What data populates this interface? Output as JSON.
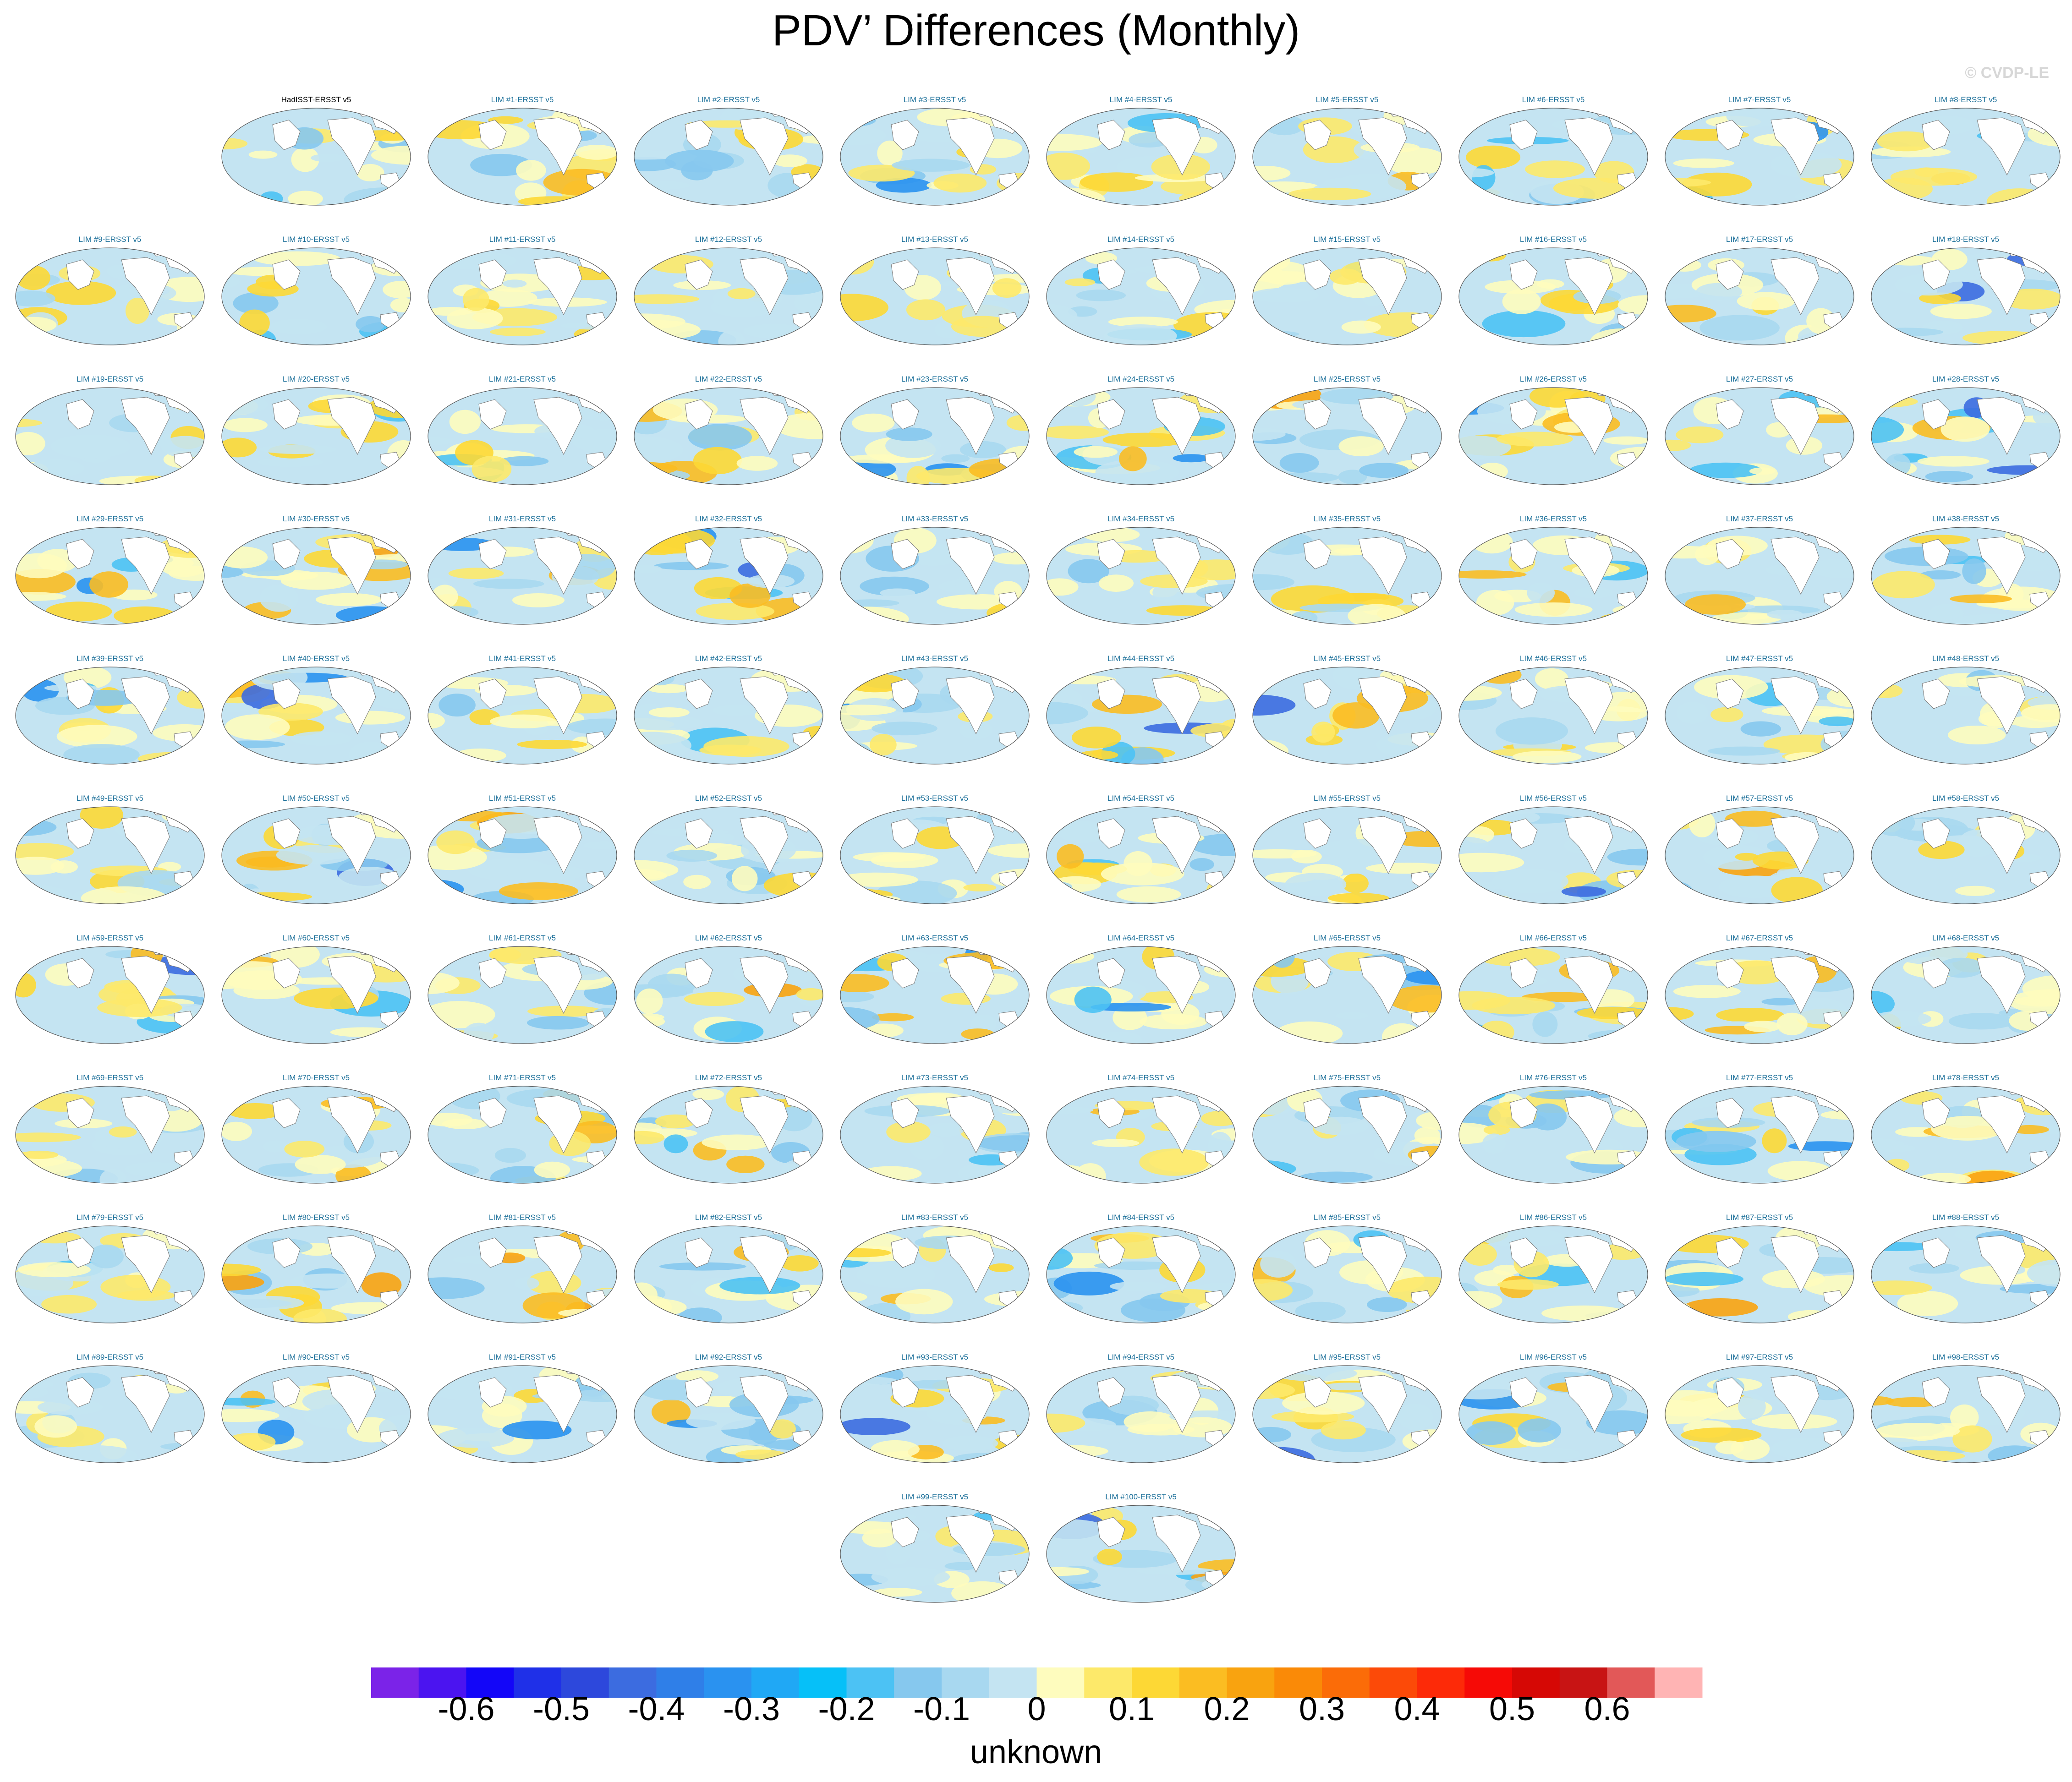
{
  "header": {
    "title": "PDV’ Differences (Monthly)",
    "copyright": "© CVDP-LE"
  },
  "chart_data": {
    "type": "heatmap",
    "title": "PDV’ Differences (Monthly)",
    "projection": "global robinson map panels",
    "panels": [
      "HadISST-ERSST v5",
      "LIM #1-ERSST v5",
      "LIM #2-ERSST v5",
      "LIM #3-ERSST v5",
      "LIM #4-ERSST v5",
      "LIM #5-ERSST v5",
      "LIM #6-ERSST v5",
      "LIM #7-ERSST v5",
      "LIM #8-ERSST v5",
      "LIM #9-ERSST v5",
      "LIM #10-ERSST v5",
      "LIM #11-ERSST v5",
      "LIM #12-ERSST v5",
      "LIM #13-ERSST v5",
      "LIM #14-ERSST v5",
      "LIM #15-ERSST v5",
      "LIM #16-ERSST v5",
      "LIM #17-ERSST v5",
      "LIM #18-ERSST v5",
      "LIM #19-ERSST v5",
      "LIM #20-ERSST v5",
      "LIM #21-ERSST v5",
      "LIM #22-ERSST v5",
      "LIM #23-ERSST v5",
      "LIM #24-ERSST v5",
      "LIM #25-ERSST v5",
      "LIM #26-ERSST v5",
      "LIM #27-ERSST v5",
      "LIM #28-ERSST v5",
      "LIM #29-ERSST v5",
      "LIM #30-ERSST v5",
      "LIM #31-ERSST v5",
      "LIM #32-ERSST v5",
      "LIM #33-ERSST v5",
      "LIM #34-ERSST v5",
      "LIM #35-ERSST v5",
      "LIM #36-ERSST v5",
      "LIM #37-ERSST v5",
      "LIM #38-ERSST v5",
      "LIM #39-ERSST v5",
      "LIM #40-ERSST v5",
      "LIM #41-ERSST v5",
      "LIM #42-ERSST v5",
      "LIM #43-ERSST v5",
      "LIM #44-ERSST v5",
      "LIM #45-ERSST v5",
      "LIM #46-ERSST v5",
      "LIM #47-ERSST v5",
      "LIM #48-ERSST v5",
      "LIM #49-ERSST v5",
      "LIM #50-ERSST v5",
      "LIM #51-ERSST v5",
      "LIM #52-ERSST v5",
      "LIM #53-ERSST v5",
      "LIM #54-ERSST v5",
      "LIM #55-ERSST v5",
      "LIM #56-ERSST v5",
      "LIM #57-ERSST v5",
      "LIM #58-ERSST v5",
      "LIM #59-ERSST v5",
      "LIM #60-ERSST v5",
      "LIM #61-ERSST v5",
      "LIM #62-ERSST v5",
      "LIM #63-ERSST v5",
      "LIM #64-ERSST v5",
      "LIM #65-ERSST v5",
      "LIM #66-ERSST v5",
      "LIM #67-ERSST v5",
      "LIM #68-ERSST v5",
      "LIM #69-ERSST v5",
      "LIM #70-ERSST v5",
      "LIM #71-ERSST v5",
      "LIM #72-ERSST v5",
      "LIM #73-ERSST v5",
      "LIM #74-ERSST v5",
      "LIM #75-ERSST v5",
      "LIM #76-ERSST v5",
      "LIM #77-ERSST v5",
      "LIM #78-ERSST v5",
      "LIM #79-ERSST v5",
      "LIM #80-ERSST v5",
      "LIM #81-ERSST v5",
      "LIM #82-ERSST v5",
      "LIM #83-ERSST v5",
      "LIM #84-ERSST v5",
      "LIM #85-ERSST v5",
      "LIM #86-ERSST v5",
      "LIM #87-ERSST v5",
      "LIM #88-ERSST v5",
      "LIM #89-ERSST v5",
      "LIM #90-ERSST v5",
      "LIM #91-ERSST v5",
      "LIM #92-ERSST v5",
      "LIM #93-ERSST v5",
      "LIM #94-ERSST v5",
      "LIM #95-ERSST v5",
      "LIM #96-ERSST v5",
      "LIM #97-ERSST v5",
      "LIM #98-ERSST v5",
      "LIM #99-ERSST v5",
      "LIM #100-ERSST v5"
    ],
    "colorbar": {
      "ticks": [
        "-0.6",
        "-0.5",
        "-0.4",
        "-0.3",
        "-0.2",
        "-0.1",
        "0",
        "0.1",
        "0.2",
        "0.3",
        "0.4",
        "0.5",
        "0.6"
      ],
      "colors": [
        "#7b23e8",
        "#4b14f0",
        "#1306f8",
        "#1f30e8",
        "#2d48dc",
        "#3c6ce0",
        "#2f7fe8",
        "#2a92f0",
        "#20a8f5",
        "#06c0f8",
        "#4cc2f4",
        "#86c8ee",
        "#a8d8f0",
        "#c4e4f2",
        "#fefcbe",
        "#fde96a",
        "#fdd835",
        "#fbbd22",
        "#f9a30f",
        "#fa8a07",
        "#fb6c08",
        "#fc4a08",
        "#fd2a08",
        "#f60a06",
        "#d60805",
        "#c81414",
        "#e25858",
        "#ffb4b4"
      ],
      "min": -0.7,
      "max": 0.7,
      "units": "unknown"
    }
  }
}
